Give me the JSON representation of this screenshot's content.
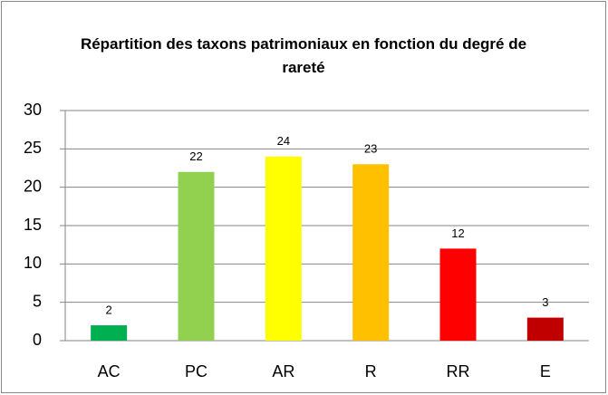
{
  "chart_data": {
    "type": "bar",
    "title": "Répartition des taxons patrimoniaux en fonction du degré de rareté",
    "categories": [
      "AC",
      "PC",
      "AR",
      "R",
      "RR",
      "E"
    ],
    "values": [
      2,
      22,
      24,
      23,
      12,
      3
    ],
    "colors": [
      "#00b050",
      "#92d050",
      "#ffff00",
      "#ffc000",
      "#ff0000",
      "#c00000"
    ],
    "ylim": [
      0,
      30
    ],
    "yticks": [
      0,
      5,
      10,
      15,
      20,
      25,
      30
    ],
    "grid": true
  }
}
